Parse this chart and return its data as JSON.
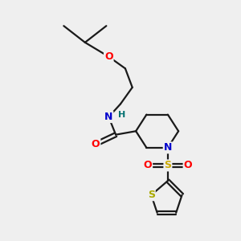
{
  "background_color": "#efefef",
  "atom_colors": {
    "C": "#000000",
    "N": "#0000cc",
    "O": "#ff0000",
    "S_sulfonyl": "#ccaa00",
    "S_thiophene": "#aaaa00",
    "H": "#007070"
  },
  "bond_color": "#1a1a1a",
  "figsize": [
    3.0,
    3.0
  ],
  "dpi": 100,
  "lw": 1.6
}
